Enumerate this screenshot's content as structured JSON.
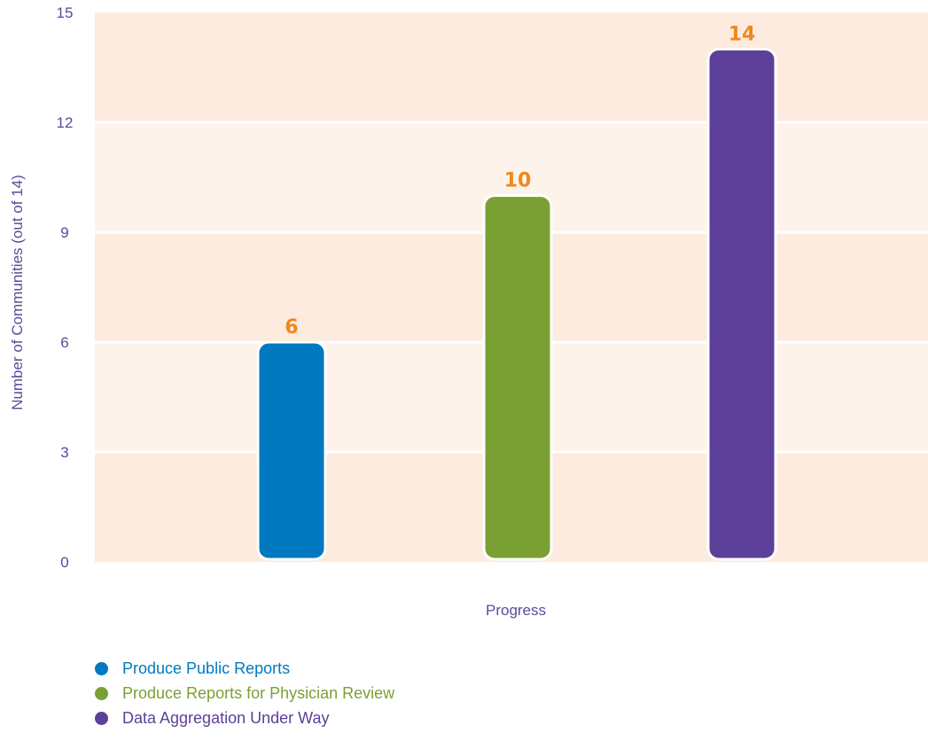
{
  "chart_data": {
    "type": "bar",
    "title": "",
    "xlabel": "Progress",
    "ylabel": "Number of Communities (out of 14)",
    "ylim": [
      0,
      15
    ],
    "yticks": [
      0,
      3,
      6,
      9,
      12,
      15
    ],
    "grid": true,
    "legend_position": "bottom-left",
    "categories": [
      "Produce Public Reports",
      "Produce Reports for Physician Review",
      "Data Aggregation Under Way"
    ],
    "values": [
      6,
      10,
      14
    ],
    "colors": [
      "#0079c1",
      "#7aa033",
      "#5c4099"
    ],
    "label_color": "#f0871f",
    "plot_background": [
      "#fcebde",
      "#fdf3eb"
    ]
  }
}
